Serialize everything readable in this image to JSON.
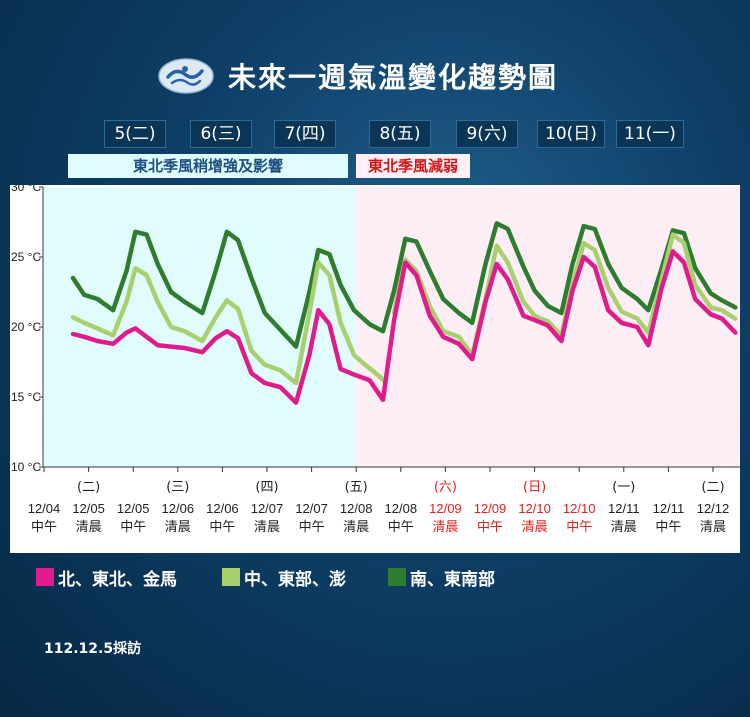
{
  "title": "未來一週氣溫變化趨勢圖",
  "logo": {
    "icon": "cwa-logo-icon"
  },
  "days": [
    "5(二)",
    "6(三)",
    "7(四)",
    "8(五)",
    "9(六)",
    "10(日)",
    "11(一)"
  ],
  "banners": {
    "left": {
      "text": "東北季風稍增強及影響",
      "color": "#1e4f80",
      "background": "#dffdff"
    },
    "right": {
      "text": "東北季風減弱",
      "color": "#d01818",
      "background": "#fff0f7"
    }
  },
  "footer_note": "112.12.5採訪",
  "chart_data": {
    "type": "line",
    "y_unit": "°C",
    "ylim": [
      10,
      30
    ],
    "yticks": [
      10,
      15,
      20,
      25,
      30
    ],
    "ytick_labels": [
      "10 °C",
      "15 °C",
      "20 °C",
      "25 °C",
      "30 °C"
    ],
    "grid": false,
    "background_regions": [
      {
        "from": 0,
        "to": 7,
        "color": "#e0fcfd"
      },
      {
        "from": 7,
        "to": 15,
        "color": "#fdeef6"
      }
    ],
    "x_labels": [
      {
        "weekday": "",
        "date": "12/04",
        "time": "中午",
        "red": false
      },
      {
        "weekday": "(二)",
        "date": "12/05",
        "time": "清晨",
        "red": false
      },
      {
        "weekday": "",
        "date": "12/05",
        "time": "中午",
        "red": false
      },
      {
        "weekday": "(三)",
        "date": "12/06",
        "time": "清晨",
        "red": false
      },
      {
        "weekday": "",
        "date": "12/06",
        "time": "中午",
        "red": false
      },
      {
        "weekday": "(四)",
        "date": "12/07",
        "time": "清晨",
        "red": false
      },
      {
        "weekday": "",
        "date": "12/07",
        "time": "中午",
        "red": false
      },
      {
        "weekday": "(五)",
        "date": "12/08",
        "time": "清晨",
        "red": false
      },
      {
        "weekday": "",
        "date": "12/08",
        "time": "中午",
        "red": false
      },
      {
        "weekday": "(六)",
        "date": "12/09",
        "time": "清晨",
        "red": true
      },
      {
        "weekday": "",
        "date": "12/09",
        "time": "中午",
        "red": true
      },
      {
        "weekday": "(日)",
        "date": "12/10",
        "time": "清晨",
        "red": true
      },
      {
        "weekday": "",
        "date": "12/10",
        "time": "中午",
        "red": true
      },
      {
        "weekday": "(一)",
        "date": "12/11",
        "time": "清晨",
        "red": false
      },
      {
        "weekday": "",
        "date": "12/11",
        "time": "中午",
        "red": false
      },
      {
        "weekday": "(二)",
        "date": "12/12",
        "time": "清晨",
        "red": false
      }
    ],
    "series": [
      {
        "name": "南、東南部",
        "color": "#2e7d2e",
        "points": [
          [
            0.65,
            23.5
          ],
          [
            0.9,
            22.3
          ],
          [
            1.2,
            22.0
          ],
          [
            1.55,
            21.2
          ],
          [
            1.85,
            24.0
          ],
          [
            2.05,
            26.8
          ],
          [
            2.3,
            26.6
          ],
          [
            2.55,
            24.5
          ],
          [
            2.85,
            22.5
          ],
          [
            3.15,
            21.8
          ],
          [
            3.55,
            21.0
          ],
          [
            3.85,
            24.0
          ],
          [
            4.1,
            26.8
          ],
          [
            4.35,
            26.2
          ],
          [
            4.65,
            23.5
          ],
          [
            4.95,
            21.0
          ],
          [
            5.3,
            19.8
          ],
          [
            5.65,
            18.6
          ],
          [
            5.95,
            22.5
          ],
          [
            6.15,
            25.5
          ],
          [
            6.4,
            25.2
          ],
          [
            6.65,
            23.0
          ],
          [
            6.95,
            21.2
          ],
          [
            7.3,
            20.2
          ],
          [
            7.6,
            19.7
          ],
          [
            7.85,
            22.6
          ],
          [
            8.1,
            26.3
          ],
          [
            8.35,
            26.1
          ],
          [
            8.65,
            24.0
          ],
          [
            8.95,
            22.0
          ],
          [
            9.3,
            21.0
          ],
          [
            9.6,
            20.3
          ],
          [
            9.9,
            24.5
          ],
          [
            10.15,
            27.4
          ],
          [
            10.4,
            27.0
          ],
          [
            10.75,
            24.3
          ],
          [
            11.0,
            22.6
          ],
          [
            11.3,
            21.5
          ],
          [
            11.6,
            21.0
          ],
          [
            11.85,
            24.5
          ],
          [
            12.1,
            27.2
          ],
          [
            12.35,
            27.0
          ],
          [
            12.65,
            24.5
          ],
          [
            12.95,
            22.8
          ],
          [
            13.3,
            22.0
          ],
          [
            13.55,
            21.2
          ],
          [
            13.85,
            24.2
          ],
          [
            14.1,
            26.9
          ],
          [
            14.35,
            26.7
          ],
          [
            14.6,
            24.2
          ],
          [
            14.95,
            22.4
          ],
          [
            15.2,
            21.9
          ],
          [
            15.5,
            21.4
          ]
        ]
      },
      {
        "name": "中、東部、澎",
        "color": "#a8d06e",
        "points": [
          [
            0.65,
            20.7
          ],
          [
            0.9,
            20.3
          ],
          [
            1.2,
            19.9
          ],
          [
            1.55,
            19.4
          ],
          [
            1.85,
            21.8
          ],
          [
            2.05,
            24.2
          ],
          [
            2.3,
            23.7
          ],
          [
            2.55,
            21.8
          ],
          [
            2.85,
            20.0
          ],
          [
            3.15,
            19.7
          ],
          [
            3.55,
            19.0
          ],
          [
            3.85,
            20.7
          ],
          [
            4.1,
            21.9
          ],
          [
            4.35,
            21.3
          ],
          [
            4.65,
            18.3
          ],
          [
            4.95,
            17.3
          ],
          [
            5.3,
            16.9
          ],
          [
            5.65,
            16.0
          ],
          [
            5.95,
            21.0
          ],
          [
            6.15,
            24.6
          ],
          [
            6.4,
            23.7
          ],
          [
            6.65,
            20.3
          ],
          [
            6.95,
            18.0
          ],
          [
            7.2,
            17.3
          ],
          [
            7.4,
            16.8
          ],
          [
            7.65,
            16.1
          ]
        ]
      },
      {
        "name": "中、東部、澎",
        "color": "#a8d06e",
        "points": [
          [
            7.85,
            21.0
          ],
          [
            8.1,
            24.8
          ],
          [
            8.35,
            24.0
          ],
          [
            8.65,
            21.5
          ],
          [
            8.95,
            19.7
          ],
          [
            9.3,
            19.3
          ],
          [
            9.6,
            18.0
          ],
          [
            9.9,
            22.0
          ],
          [
            10.15,
            25.8
          ],
          [
            10.4,
            24.6
          ],
          [
            10.75,
            21.8
          ],
          [
            11.0,
            20.8
          ],
          [
            11.3,
            20.4
          ],
          [
            11.6,
            19.4
          ],
          [
            11.85,
            23.0
          ],
          [
            12.1,
            26.0
          ],
          [
            12.35,
            25.5
          ],
          [
            12.65,
            22.8
          ],
          [
            12.95,
            21.1
          ],
          [
            13.3,
            20.6
          ],
          [
            13.55,
            19.6
          ],
          [
            13.85,
            23.4
          ],
          [
            14.1,
            26.6
          ],
          [
            14.35,
            26.0
          ],
          [
            14.6,
            23.0
          ],
          [
            14.95,
            21.4
          ],
          [
            15.2,
            21.2
          ],
          [
            15.5,
            20.6
          ]
        ]
      },
      {
        "name": "北、東北、金馬",
        "color": "#e01b8c",
        "points": [
          [
            0.65,
            19.5
          ],
          [
            0.9,
            19.3
          ],
          [
            1.2,
            19.0
          ],
          [
            1.55,
            18.8
          ],
          [
            1.85,
            19.6
          ],
          [
            2.05,
            19.9
          ],
          [
            2.3,
            19.3
          ],
          [
            2.55,
            18.7
          ],
          [
            2.85,
            18.6
          ],
          [
            3.15,
            18.5
          ],
          [
            3.55,
            18.2
          ],
          [
            3.85,
            19.2
          ],
          [
            4.1,
            19.7
          ],
          [
            4.35,
            19.2
          ],
          [
            4.65,
            16.7
          ],
          [
            4.95,
            16.0
          ],
          [
            5.3,
            15.7
          ],
          [
            5.65,
            14.6
          ],
          [
            5.95,
            18.0
          ],
          [
            6.15,
            21.2
          ],
          [
            6.4,
            20.2
          ],
          [
            6.65,
            17.0
          ],
          [
            6.95,
            16.6
          ],
          [
            7.3,
            16.2
          ],
          [
            7.6,
            14.8
          ],
          [
            7.85,
            20.5
          ],
          [
            8.1,
            24.6
          ],
          [
            8.35,
            23.7
          ],
          [
            8.65,
            20.8
          ],
          [
            8.95,
            19.3
          ],
          [
            9.3,
            18.8
          ],
          [
            9.6,
            17.7
          ],
          [
            9.9,
            21.8
          ],
          [
            10.15,
            24.5
          ],
          [
            10.4,
            23.4
          ],
          [
            10.75,
            20.8
          ],
          [
            11.0,
            20.5
          ],
          [
            11.3,
            20.1
          ],
          [
            11.6,
            19.0
          ],
          [
            11.85,
            22.6
          ],
          [
            12.1,
            25.0
          ],
          [
            12.35,
            24.3
          ],
          [
            12.65,
            21.2
          ],
          [
            12.95,
            20.3
          ],
          [
            13.3,
            20.0
          ],
          [
            13.55,
            18.7
          ],
          [
            13.85,
            22.8
          ],
          [
            14.1,
            25.4
          ],
          [
            14.35,
            24.6
          ],
          [
            14.6,
            22.0
          ],
          [
            14.95,
            20.9
          ],
          [
            15.2,
            20.6
          ],
          [
            15.5,
            19.6
          ]
        ]
      }
    ],
    "legend": [
      {
        "label": "北、東北、金馬",
        "color": "#e01b8c"
      },
      {
        "label": "中、東部、澎",
        "color": "#a8d06e"
      },
      {
        "label": "南、東南部",
        "color": "#2e7d2e"
      }
    ]
  }
}
